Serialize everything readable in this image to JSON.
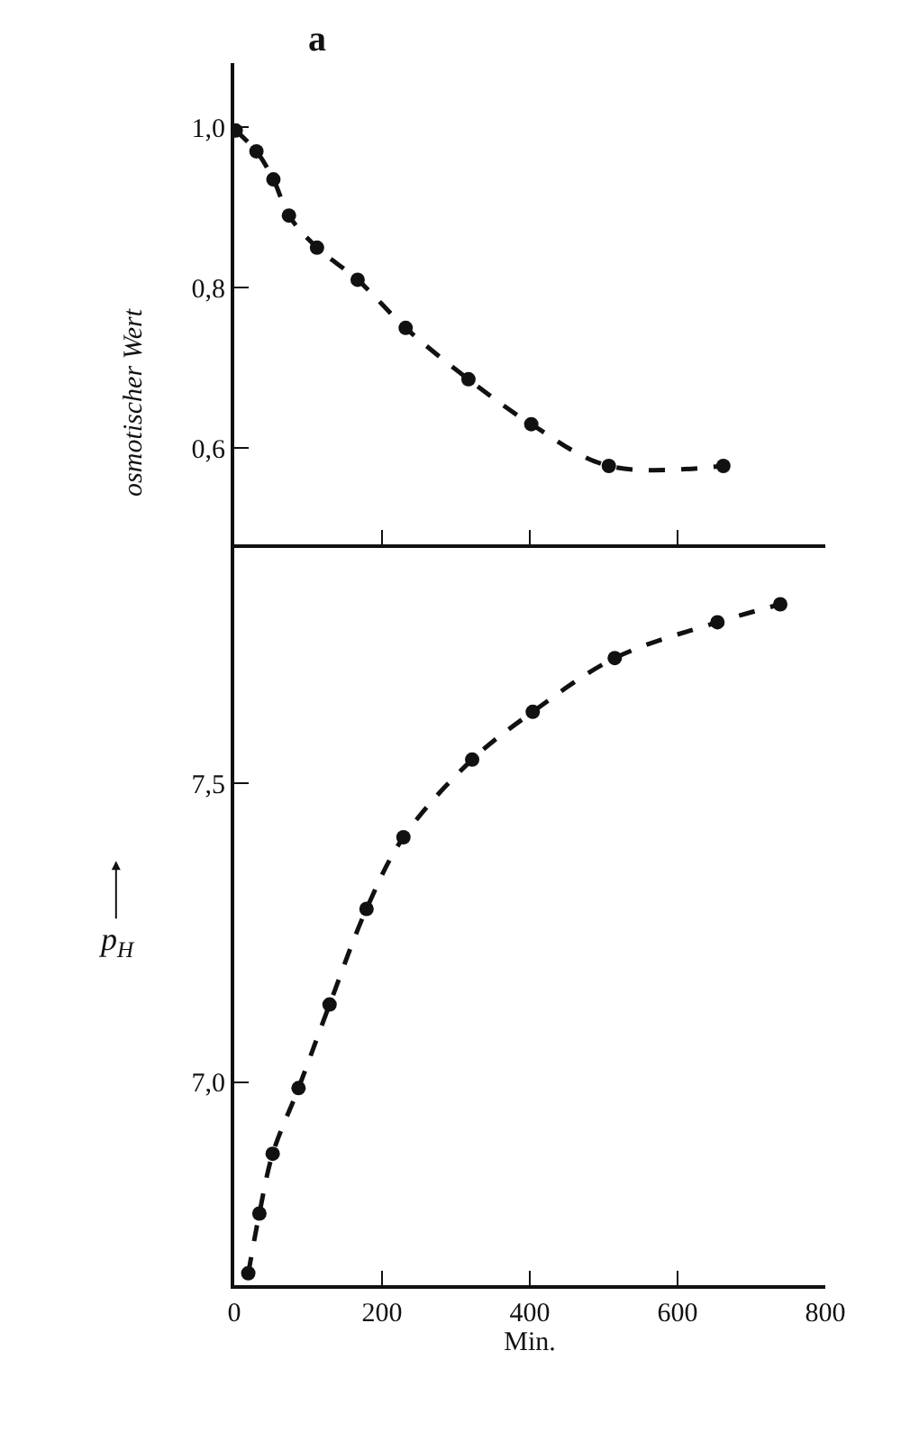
{
  "chart_data": [
    {
      "type": "line",
      "title": "a",
      "ylabel": "osmotischer Wert",
      "x": [
        2,
        30,
        53,
        74,
        112,
        167,
        232,
        317,
        402,
        507,
        662
      ],
      "series": [
        {
          "color": "#111111",
          "values": [
            0.996,
            0.97,
            0.935,
            0.89,
            0.85,
            0.81,
            0.75,
            0.686,
            0.63,
            0.578,
            0.578
          ]
        }
      ],
      "xlim": [
        0,
        800
      ],
      "xticks": [
        0,
        200,
        400,
        600,
        800
      ],
      "ylim": [
        0.48,
        1.08
      ],
      "yticks": [
        {
          "value": 0.6,
          "label": "0,6"
        },
        {
          "value": 0.8,
          "label": "0,8"
        },
        {
          "value": 1.0,
          "label": "1,0"
        }
      ],
      "tick_labels": "y",
      "marker": "circle",
      "line_style": "dashed"
    },
    {
      "type": "line",
      "xlabel": "Min.",
      "ylabel": "p$_{H}$",
      "x": [
        19,
        34,
        52,
        87,
        129,
        179,
        229,
        322,
        404,
        515,
        654,
        739
      ],
      "series": [
        {
          "color": "#111111",
          "values": [
            6.68,
            6.78,
            6.88,
            6.99,
            7.13,
            7.29,
            7.41,
            7.54,
            7.62,
            7.71,
            7.77,
            7.8
          ]
        }
      ],
      "xlim": [
        0,
        800
      ],
      "xticks": [
        0,
        200,
        400,
        600,
        800
      ],
      "ylim": [
        6.66,
        7.9
      ],
      "yticks": [
        {
          "value": 7.0,
          "label": "7,0"
        },
        {
          "value": 7.5,
          "label": "7,5"
        }
      ],
      "marker": "circle",
      "line_style": "dashed"
    }
  ]
}
